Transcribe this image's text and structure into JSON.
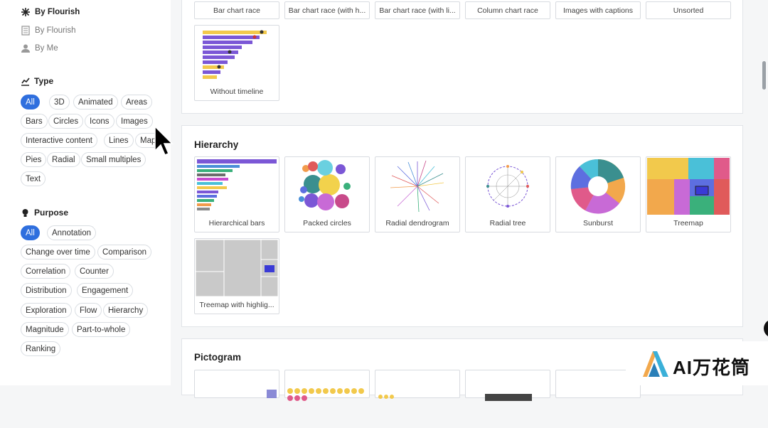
{
  "sidebar": {
    "owner": [
      {
        "label": "By Flourish",
        "icon": "flourish-icon",
        "active": true
      },
      {
        "label": "By Flourish",
        "icon": "document-icon",
        "active": false
      },
      {
        "label": "By Me",
        "icon": "user-icon",
        "active": false
      }
    ],
    "type_title": "Type",
    "type_chips": [
      "All",
      "3D",
      "Animated",
      "Areas",
      "Bars",
      "Circles",
      "Icons",
      "Images",
      "Interactive content",
      "Lines",
      "Maps",
      "Pies",
      "Radial",
      "Small multiples",
      "Text"
    ],
    "purpose_title": "Purpose",
    "purpose_chips": [
      "All",
      "Annotation",
      "Change over time",
      "Comparison",
      "Correlation",
      "Counter",
      "Distribution",
      "Engagement",
      "Exploration",
      "Flow",
      "Hierarchy",
      "Magnitude",
      "Part-to-whole",
      "Ranking"
    ]
  },
  "top_panel": {
    "cards_row1": [
      "Bar chart race",
      "Bar chart race (with h...",
      "Bar chart race (with li...",
      "Column chart race",
      "Images with captions",
      "Unsorted"
    ],
    "card_row2": "Without timeline"
  },
  "hierarchy": {
    "title": "Hierarchy",
    "cards": [
      "Hierarchical bars",
      "Packed circles",
      "Radial dendrogram",
      "Radial tree",
      "Sunburst",
      "Treemap",
      "Treemap with highlig..."
    ]
  },
  "pictogram": {
    "title": "Pictogram"
  },
  "watermark": "AI万花筒",
  "colors": {
    "accent": "#2f6fde",
    "purple": "#7b57d6",
    "yellow": "#f2c94c"
  }
}
